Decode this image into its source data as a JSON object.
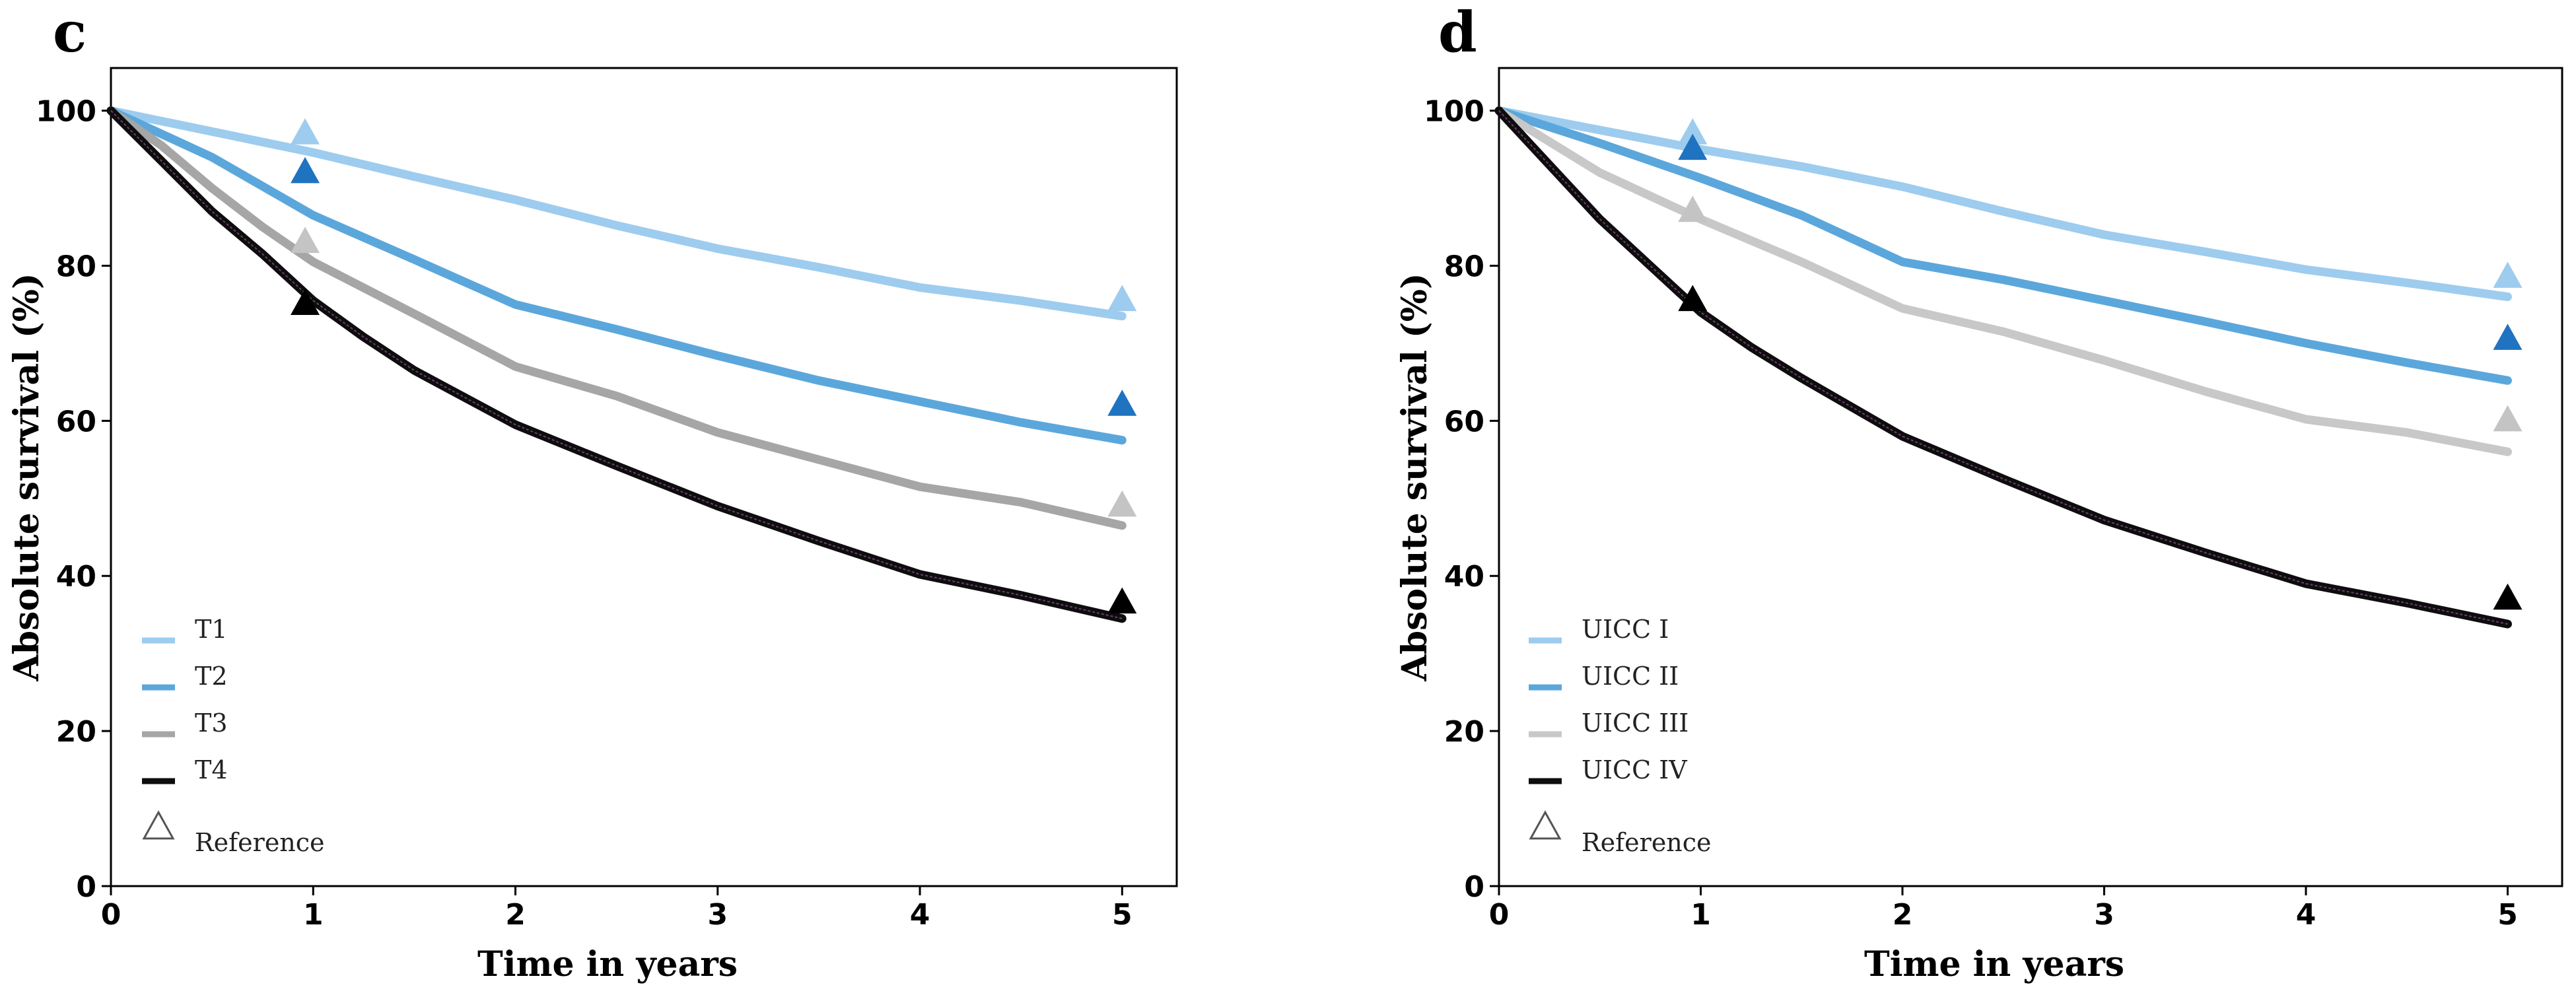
{
  "chart_data": [
    {
      "type": "line",
      "panel_label": "c",
      "xlabel": "Time in years",
      "ylabel": "Absolute survival (%)",
      "xlim": [
        0,
        5.27
      ],
      "ylim": [
        0,
        105.5
      ],
      "xticks": [
        0,
        1,
        2,
        3,
        4,
        5
      ],
      "yticks": [
        0,
        20,
        40,
        60,
        80,
        100
      ],
      "legend_position": "bottom-left",
      "series": [
        {
          "name": "T1",
          "color": "#9DCCEE",
          "x": [
            0,
            0.5,
            1,
            1.5,
            2,
            2.5,
            3,
            3.5,
            4,
            4.5,
            5
          ],
          "y": [
            100,
            97.3,
            94.6,
            91.5,
            88.5,
            85.2,
            82.2,
            79.8,
            77.2,
            75.5,
            73.5
          ]
        },
        {
          "name": "T2",
          "color": "#5BA7DC",
          "x": [
            0,
            0.5,
            1,
            1.5,
            2,
            2.5,
            3,
            3.5,
            4,
            4.5,
            5
          ],
          "y": [
            100,
            94,
            86.5,
            80.8,
            75,
            71.8,
            68.4,
            65.2,
            62.5,
            59.8,
            57.5
          ]
        },
        {
          "name": "T3",
          "color": "#A6A6A6",
          "x": [
            0,
            0.25,
            0.5,
            0.75,
            1,
            1.5,
            2,
            2.5,
            3,
            3.5,
            4,
            4.5,
            5
          ],
          "y": [
            100,
            95.5,
            90,
            85,
            80.5,
            73.8,
            67,
            63.2,
            58.5,
            55,
            51.5,
            49.5,
            46.5
          ]
        },
        {
          "name": "T4",
          "color": "#0D0D0D",
          "x": [
            0,
            0.25,
            0.5,
            0.75,
            1,
            1.25,
            1.5,
            2,
            2.5,
            3,
            3.5,
            4,
            4.5,
            5
          ],
          "y": [
            100,
            93.5,
            87,
            81.5,
            75.5,
            70.8,
            66.5,
            59.5,
            54.2,
            49,
            44.5,
            40.2,
            37.5,
            34.5
          ]
        }
      ],
      "reference": {
        "name": "Reference",
        "points": [
          {
            "series": "T1",
            "x": 0.96,
            "y": 97,
            "color": "#9DCCEE"
          },
          {
            "series": "T2",
            "x": 0.96,
            "y": 92,
            "color": "#1F73C0"
          },
          {
            "series": "T3",
            "x": 0.96,
            "y": 83,
            "color": "#C4C4C4"
          },
          {
            "series": "T4",
            "x": 0.96,
            "y": 75,
            "color": "#000000"
          },
          {
            "series": "T1",
            "x": 5,
            "y": 75.5,
            "color": "#9DCCEE"
          },
          {
            "series": "T2",
            "x": 5,
            "y": 62,
            "color": "#1F73C0"
          },
          {
            "series": "T3",
            "x": 5,
            "y": 49,
            "color": "#C4C4C4"
          },
          {
            "series": "T4",
            "x": 5,
            "y": 36.5,
            "color": "#000000"
          }
        ]
      }
    },
    {
      "type": "line",
      "panel_label": "d",
      "xlabel": "Time in years",
      "ylabel": "Absolute survival (%)",
      "xlim": [
        0,
        5.27
      ],
      "ylim": [
        0,
        105.5
      ],
      "xticks": [
        0,
        1,
        2,
        3,
        4,
        5
      ],
      "yticks": [
        0,
        20,
        40,
        60,
        80,
        100
      ],
      "legend_position": "bottom-left",
      "series": [
        {
          "name": "UICC I",
          "color": "#9DCCEE",
          "x": [
            0,
            0.5,
            1,
            1.5,
            2,
            2.5,
            3,
            3.5,
            4,
            4.5,
            5
          ],
          "y": [
            100,
            97.5,
            95,
            92.8,
            90.2,
            87,
            84,
            81.8,
            79.5,
            77.8,
            76
          ]
        },
        {
          "name": "UICC II",
          "color": "#5BA7DC",
          "x": [
            0,
            0.5,
            1,
            1.5,
            2,
            2.5,
            3,
            3.5,
            4,
            4.5,
            5
          ],
          "y": [
            100,
            95.8,
            91.3,
            86.5,
            80.5,
            78.2,
            75.5,
            72.8,
            70,
            67.5,
            65.2
          ]
        },
        {
          "name": "UICC III",
          "color": "#C8C8C8",
          "x": [
            0,
            0.25,
            0.5,
            0.75,
            1,
            1.5,
            2,
            2.5,
            3,
            3.5,
            4,
            4.5,
            5
          ],
          "y": [
            100,
            96,
            92,
            89,
            86,
            80.5,
            74.5,
            71.5,
            67.8,
            63.8,
            60.2,
            58.5,
            56
          ]
        },
        {
          "name": "UICC IV",
          "color": "#0D0D0D",
          "x": [
            0,
            0.25,
            0.5,
            0.75,
            1,
            1.25,
            1.5,
            2,
            2.5,
            3,
            3.5,
            4,
            4.5,
            5
          ],
          "y": [
            100,
            93,
            86,
            80,
            74,
            69.5,
            65.5,
            58,
            52.5,
            47.2,
            43,
            39,
            36.5,
            33.8
          ]
        }
      ],
      "reference": {
        "name": "Reference",
        "points": [
          {
            "series": "UICC I",
            "x": 0.96,
            "y": 97,
            "color": "#9DCCEE"
          },
          {
            "series": "UICC II",
            "x": 0.96,
            "y": 95,
            "color": "#1F73C0"
          },
          {
            "series": "UICC III",
            "x": 0.96,
            "y": 87,
            "color": "#C4C4C4"
          },
          {
            "series": "UICC IV",
            "x": 0.96,
            "y": 75.5,
            "color": "#000000"
          },
          {
            "series": "UICC I",
            "x": 5,
            "y": 78.5,
            "color": "#9DCCEE"
          },
          {
            "series": "UICC II",
            "x": 5,
            "y": 70.5,
            "color": "#1F73C0"
          },
          {
            "series": "UICC III",
            "x": 5,
            "y": 60,
            "color": "#C4C4C4"
          },
          {
            "series": "UICC IV",
            "x": 5,
            "y": 37,
            "color": "#000000"
          }
        ]
      }
    }
  ]
}
